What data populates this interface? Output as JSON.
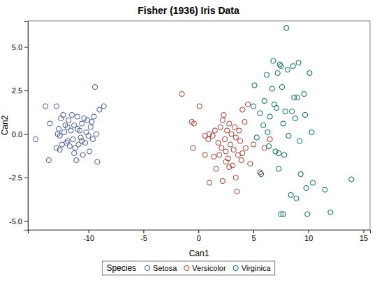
{
  "chart_data": {
    "type": "scatter",
    "title": "Fisher (1936) Iris Data",
    "x_label": "Can1",
    "y_label": "Can2",
    "legend_title": "Species",
    "legend": "bottom",
    "grid": false,
    "marker": "circle",
    "xlim": [
      -15.5,
      15.6
    ],
    "xticks": [
      -10,
      -5,
      0,
      5,
      10,
      15
    ],
    "ylim": [
      -5.5,
      6.5
    ],
    "yticks": [
      {
        "value": -5,
        "label": "-5.0"
      },
      {
        "value": -2.5,
        "label": "-2.5"
      },
      {
        "value": 0,
        "label": "0.0"
      },
      {
        "value": 2.5,
        "label": "2.5"
      },
      {
        "value": 5,
        "label": "5.0"
      }
    ],
    "series": [
      {
        "name": "Setosa",
        "color": "#445694",
        "x": [
          -13.9,
          -12.9,
          -14.8,
          -13.5,
          -13.6,
          -12.8,
          -12.6,
          -12.3,
          -12.5,
          -12.2,
          -12.4,
          -12.6,
          -12.9,
          -12.0,
          -11.9,
          -11.6,
          -11.8,
          -11.5,
          -11.4,
          -11.3,
          -11.2,
          -11.0,
          -11.0,
          -10.9,
          -10.7,
          -10.6,
          -10.5,
          -10.4,
          -10.3,
          -10.2,
          -10.0,
          -9.9,
          -9.8,
          -9.7,
          -9.6,
          -9.5,
          -9.4,
          -9.2,
          -9.0,
          -8.6,
          -11.7,
          -12.1,
          -11.1,
          -10.8,
          -12.7,
          -11.3,
          -10.1,
          -9.3,
          -11.9,
          -10.6
        ],
        "values": [
          1.6,
          1.6,
          -0.3,
          0.6,
          -1.5,
          0.0,
          -0.1,
          1.1,
          0.9,
          0.1,
          -0.6,
          -0.9,
          -0.8,
          -0.5,
          0.4,
          0.2,
          0.8,
          1.1,
          -0.3,
          0.5,
          -0.8,
          0.3,
          1.0,
          -0.6,
          -0.2,
          0.6,
          -1.2,
          0.9,
          -0.5,
          0.1,
          -0.1,
          -1.0,
          0.4,
          0.7,
          -0.3,
          1.0,
          2.7,
          -1.6,
          1.4,
          1.6,
          -0.7,
          0.5,
          -1.5,
          0.2,
          0.3,
          -1.1,
          0.8,
          0.0,
          -0.4,
          -0.4
        ]
      },
      {
        "name": "Versicolor",
        "color": "#A23A2E",
        "x": [
          -1.5,
          0.1,
          -0.6,
          -0.4,
          -0.5,
          0.6,
          0.9,
          1.0,
          1.3,
          1.5,
          1.4,
          1.6,
          1.8,
          2.0,
          2.1,
          2.2,
          2.3,
          2.4,
          2.5,
          2.6,
          2.7,
          2.8,
          2.9,
          3.0,
          3.1,
          3.2,
          3.3,
          3.4,
          3.5,
          3.6,
          3.7,
          3.8,
          3.9,
          4.0,
          4.2,
          4.3,
          4.5,
          4.7,
          5.0,
          5.6,
          6.0,
          6.5,
          2.2,
          1.0,
          2.5,
          1.9,
          3.4,
          2.8,
          0.6,
          4.0
        ],
        "values": [
          2.3,
          1.6,
          0.7,
          0.6,
          -0.8,
          -0.1,
          -0.3,
          0.0,
          -0.1,
          0.2,
          -1.3,
          -2.0,
          -0.5,
          0.4,
          -0.8,
          0.8,
          1.1,
          -0.3,
          -1.0,
          0.2,
          -1.4,
          0.6,
          -0.6,
          0.0,
          -1.8,
          -0.9,
          0.4,
          -2.5,
          -3.3,
          -1.2,
          0.2,
          -0.4,
          -1.5,
          1.4,
          0.7,
          -0.8,
          1.7,
          -1.7,
          -0.6,
          -2.2,
          -0.8,
          -0.3,
          -2.7,
          -2.8,
          -1.6,
          -1.2,
          -0.2,
          -1.9,
          -1.2,
          -1.1
        ]
      },
      {
        "name": "Virginica",
        "color": "#01665E",
        "x": [
          5.0,
          5.1,
          5.3,
          5.6,
          5.7,
          5.9,
          6.0,
          6.2,
          6.4,
          6.5,
          6.7,
          6.8,
          6.9,
          7.0,
          7.1,
          7.2,
          7.3,
          7.4,
          7.5,
          7.5,
          7.7,
          7.7,
          7.8,
          7.9,
          8.0,
          8.1,
          8.2,
          8.4,
          8.5,
          8.6,
          8.7,
          8.9,
          9.0,
          9.1,
          9.2,
          9.3,
          9.6,
          9.7,
          9.8,
          9.9,
          10.1,
          10.3,
          10.4,
          11.5,
          12.0,
          13.9,
          7.6,
          6.3,
          8.8,
          7.3
        ],
        "values": [
          1.6,
          2.8,
          -0.2,
          1.2,
          -2.3,
          0.5,
          1.9,
          3.4,
          -0.7,
          1.0,
          2.6,
          4.2,
          1.7,
          -1.0,
          1.5,
          3.5,
          -1.1,
          4.0,
          3.9,
          -4.6,
          -4.6,
          0.6,
          -1.2,
          1.3,
          6.1,
          3.7,
          -0.1,
          -3.5,
          1.3,
          3.9,
          2.1,
          -3.7,
          2.1,
          4.1,
          -0.4,
          -2.3,
          2.3,
          1.1,
          -3.1,
          -4.6,
          3.5,
          0.1,
          -2.8,
          -3.2,
          -4.5,
          -2.6,
          2.7,
          0.1,
          0.9,
          -2.0
        ]
      }
    ]
  }
}
